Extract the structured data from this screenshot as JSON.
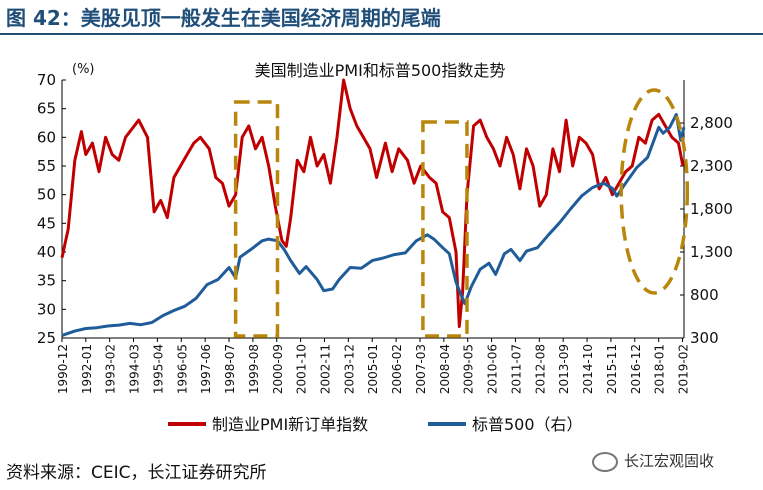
{
  "figure": {
    "label": "图 42：美股见顶一般发生在美国经济周期的尾端",
    "source": "资料来源：CEIC，长江证券研究所",
    "watermark": "长江宏观固收",
    "watermark_icon": "wechat-icon"
  },
  "chart_data": {
    "type": "line",
    "title": "美国制造业PMI和标普500指数走势",
    "left_axis_unit": "(%)",
    "right_axis_unit": "(右)",
    "ylim_left": [
      25,
      70
    ],
    "yticks_left": [
      "70",
      "65",
      "60",
      "55",
      "50",
      "45",
      "40",
      "35",
      "30",
      "25"
    ],
    "ylim_right": [
      300,
      3300
    ],
    "yticks_right": [
      "2,800",
      "2,300",
      "1,800",
      "1,300",
      "800",
      "300"
    ],
    "x_ticks": [
      "1990-12",
      "1992-01",
      "1993-02",
      "1994-03",
      "1995-04",
      "1996-05",
      "1997-06",
      "1998-07",
      "1999-08",
      "2000-09",
      "2001-10",
      "2002-11",
      "2003-12",
      "2005-01",
      "2006-02",
      "2007-03",
      "2008-04",
      "2009-05",
      "2010-06",
      "2011-07",
      "2012-08",
      "2013-09",
      "2014-10",
      "2015-11",
      "2016-12",
      "2018-01",
      "2019-02"
    ],
    "grid": false,
    "legend_position": "bottom",
    "series": [
      {
        "name": "制造业PMI新订单指数",
        "axis": "left",
        "color": "#c00000",
        "x": [
          1990.92,
          1991.2,
          1991.5,
          1991.8,
          1992.0,
          1992.3,
          1992.6,
          1992.9,
          1993.2,
          1993.5,
          1993.8,
          1994.0,
          1994.4,
          1994.8,
          1995.1,
          1995.4,
          1995.7,
          1996.0,
          1996.3,
          1996.6,
          1996.9,
          1997.2,
          1997.6,
          1997.9,
          1998.2,
          1998.5,
          1998.8,
          1999.1,
          1999.4,
          1999.7,
          2000.0,
          2000.3,
          2000.6,
          2000.9,
          2001.1,
          2001.3,
          2001.6,
          2001.9,
          2002.2,
          2002.5,
          2002.8,
          2003.1,
          2003.4,
          2003.7,
          2004.0,
          2004.3,
          2004.6,
          2004.9,
          2005.2,
          2005.6,
          2005.9,
          2006.2,
          2006.6,
          2006.9,
          2007.2,
          2007.6,
          2007.9,
          2008.2,
          2008.5,
          2008.8,
          2008.95,
          2009.1,
          2009.3,
          2009.6,
          2009.9,
          2010.2,
          2010.5,
          2010.8,
          2011.1,
          2011.4,
          2011.7,
          2012.0,
          2012.3,
          2012.6,
          2012.9,
          2013.2,
          2013.5,
          2013.8,
          2014.1,
          2014.4,
          2014.7,
          2015.0,
          2015.3,
          2015.6,
          2015.9,
          2016.2,
          2016.5,
          2016.8,
          2017.1,
          2017.4,
          2017.7,
          2018.0,
          2018.3,
          2018.6,
          2018.9,
          2019.1
        ],
        "values": [
          39,
          44,
          56,
          61,
          57,
          59,
          54,
          60,
          57,
          56,
          60,
          61,
          63,
          60,
          47,
          49,
          46,
          53,
          55,
          57,
          59,
          60,
          58,
          53,
          52,
          48,
          50,
          60,
          62,
          58,
          60,
          55,
          48,
          42,
          41,
          46,
          56,
          54,
          60,
          55,
          57,
          52,
          60,
          70,
          65,
          62,
          60,
          58,
          53,
          59,
          54,
          58,
          56,
          52,
          55,
          53,
          52,
          47,
          46,
          40,
          27,
          33,
          50,
          62,
          63,
          60,
          58,
          55,
          60,
          57,
          51,
          58,
          55,
          48,
          50,
          58,
          54,
          63,
          55,
          60,
          59,
          57,
          51,
          53,
          50,
          52,
          54,
          55,
          60,
          59,
          63,
          64,
          62,
          60,
          59,
          55
        ],
        "annotation_interpretation": "values read from left axis (%)"
      },
      {
        "name": "标普500（右）",
        "axis": "right",
        "color": "#1f5c99",
        "x": [
          1990.92,
          1991.5,
          1992.0,
          1992.5,
          1993.0,
          1993.5,
          1994.0,
          1994.5,
          1995.0,
          1995.5,
          1996.0,
          1996.5,
          1997.0,
          1997.5,
          1998.0,
          1998.5,
          1998.8,
          1999.0,
          1999.5,
          2000.0,
          2000.3,
          2000.7,
          2001.0,
          2001.3,
          2001.7,
          2002.0,
          2002.5,
          2002.8,
          2003.2,
          2003.5,
          2004.0,
          2004.5,
          2005.0,
          2005.5,
          2006.0,
          2006.5,
          2007.0,
          2007.5,
          2007.8,
          2008.2,
          2008.5,
          2008.8,
          2009.0,
          2009.2,
          2009.5,
          2009.9,
          2010.3,
          2010.6,
          2011.0,
          2011.3,
          2011.7,
          2012.0,
          2012.5,
          2013.0,
          2013.5,
          2014.0,
          2014.5,
          2015.0,
          2015.5,
          2015.9,
          2016.1,
          2016.5,
          2017.0,
          2017.5,
          2018.0,
          2018.2,
          2018.5,
          2018.8,
          2019.0,
          2019.15
        ],
        "values": [
          330,
          380,
          410,
          420,
          440,
          450,
          470,
          455,
          480,
          560,
          620,
          670,
          760,
          920,
          980,
          1120,
          1000,
          1240,
          1330,
          1430,
          1450,
          1430,
          1330,
          1200,
          1050,
          1130,
          980,
          850,
          870,
          980,
          1120,
          1110,
          1200,
          1230,
          1270,
          1290,
          1430,
          1500,
          1450,
          1350,
          1280,
          950,
          820,
          700,
          900,
          1100,
          1170,
          1040,
          1280,
          1330,
          1200,
          1310,
          1350,
          1500,
          1640,
          1800,
          1950,
          2050,
          2100,
          2040,
          1950,
          2100,
          2280,
          2400,
          2750,
          2680,
          2750,
          2900,
          2600,
          2750
        ]
      }
    ],
    "annotations": [
      {
        "shape": "dashed-rectangle",
        "color": "#b8860b",
        "x_range": [
          1998.8,
          2000.7
        ]
      },
      {
        "shape": "dashed-rectangle",
        "color": "#b8860b",
        "x_range": [
          2007.3,
          2009.3
        ]
      },
      {
        "shape": "dashed-ellipse",
        "color": "#b8860b",
        "x_range": [
          2016.3,
          2019.3
        ]
      }
    ]
  }
}
